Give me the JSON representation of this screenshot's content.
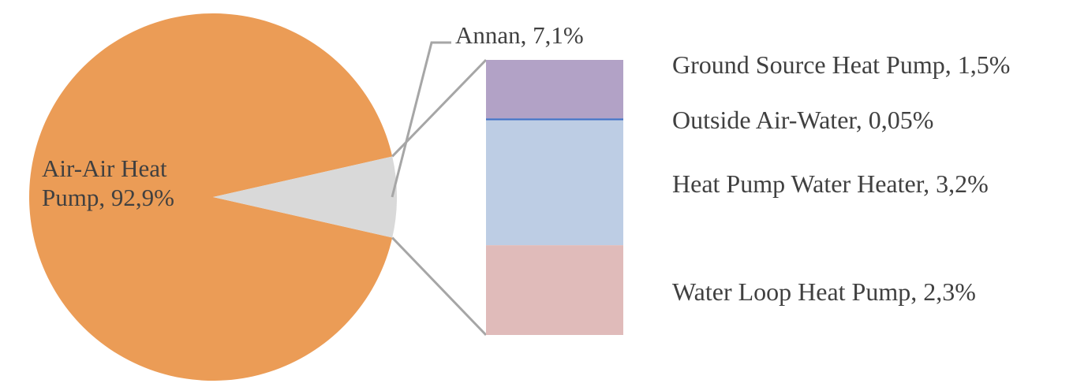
{
  "chart_data": {
    "type": "pie",
    "subtype": "bar-of-pie",
    "pie": {
      "slices": [
        {
          "label_lines": [
            "Air-Air Heat",
            "Pump, 92,9%"
          ],
          "category": "Air-Air Heat Pump",
          "value": 92.9,
          "color": "#EB9C56"
        },
        {
          "label_lines": [
            "Annan, 7,1%"
          ],
          "category": "Annan",
          "value": 7.1,
          "color": "#D9D9D9"
        }
      ]
    },
    "stacked_bar": {
      "segments": [
        {
          "label": "Ground Source Heat Pump, 1,5%",
          "category": "Ground Source Heat Pump",
          "value": 1.5,
          "color": "#B2A2C6"
        },
        {
          "label": "Outside Air-Water, 0,05%",
          "category": "Outside Air-Water",
          "value": 0.05,
          "color": "#4472C4"
        },
        {
          "label": "Heat Pump Water Heater, 3,2%",
          "category": "Heat Pump Water Heater",
          "value": 3.2,
          "color": "#BDCDE4"
        },
        {
          "label": "Water Loop Heat Pump, 2,3%",
          "category": "Water Loop Heat Pump",
          "value": 2.3,
          "color": "#E0BBBA"
        }
      ]
    },
    "connector_color": "#A6A6A6",
    "label_color": "#404040",
    "legend": "none"
  }
}
